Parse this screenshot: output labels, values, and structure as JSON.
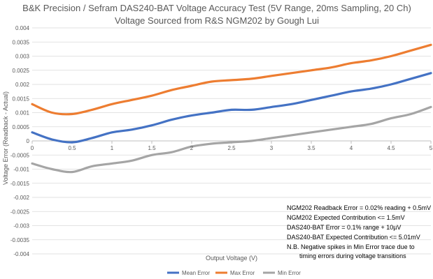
{
  "chart_data": {
    "type": "line",
    "title_lines": [
      "B&K Precision / Sefram DAS240-BAT Voltage Accuracy Test (5V Range, 20ms Sampling, 20 Ch)",
      "Voltage Sourced from R&S NGM202 by Gough Lui"
    ],
    "xlabel": "Output Voltage (V)",
    "ylabel": "Voltage Error (Readback - Actual)",
    "xlim": [
      0,
      5
    ],
    "ylim": [
      -0.004,
      0.004
    ],
    "x_ticks": [
      0,
      0.5,
      1,
      1.5,
      2,
      2.5,
      3,
      3.5,
      4,
      4.5,
      5
    ],
    "x_tick_labels": [
      "0",
      "0.5",
      "1",
      "1.5",
      "2",
      "2.5",
      "3",
      "3.5",
      "4",
      "4.5",
      "5"
    ],
    "y_ticks": [
      -0.004,
      -0.0035,
      -0.003,
      -0.0025,
      -0.002,
      -0.0015,
      -0.001,
      -0.0005,
      0,
      0.0005,
      0.001,
      0.0015,
      0.002,
      0.0025,
      0.003,
      0.0035,
      0.004
    ],
    "y_tick_labels": [
      "-0.004",
      "-0.0035",
      "-0.003",
      "-0.0025",
      "-0.002",
      "-0.0015",
      "-0.001",
      "-0.0005",
      "0",
      "0.0005",
      "0.001",
      "0.0015",
      "0.002",
      "0.0025",
      "0.003",
      "0.0035",
      "0.004"
    ],
    "grid": true,
    "legend_position": "bottom",
    "x": [
      0,
      0.25,
      0.5,
      0.75,
      1,
      1.25,
      1.5,
      1.75,
      2,
      2.25,
      2.5,
      2.75,
      3,
      3.25,
      3.5,
      3.75,
      4,
      4.25,
      4.5,
      4.75,
      5
    ],
    "series": [
      {
        "name": "Mean Error",
        "color": "#4472C4",
        "values": [
          0.0003,
          5e-05,
          -5e-05,
          0.0001,
          0.0003,
          0.0004,
          0.00055,
          0.00075,
          0.0009,
          0.001,
          0.0011,
          0.0011,
          0.0012,
          0.0013,
          0.00145,
          0.0016,
          0.00175,
          0.00185,
          0.002,
          0.0022,
          0.0024
        ]
      },
      {
        "name": "Max Error",
        "color": "#ED7D31",
        "values": [
          0.0013,
          0.001,
          0.00095,
          0.0011,
          0.0013,
          0.00145,
          0.0016,
          0.0018,
          0.00195,
          0.0021,
          0.00215,
          0.0022,
          0.0023,
          0.0024,
          0.0025,
          0.0026,
          0.00275,
          0.00285,
          0.003,
          0.0032,
          0.0034
        ]
      },
      {
        "name": "Min Error",
        "color": "#A5A5A5",
        "values": [
          -0.0008,
          -0.001,
          -0.0011,
          -0.0009,
          -0.0008,
          -0.0007,
          -0.0005,
          -0.0004,
          -0.0002,
          -0.0001,
          -5e-05,
          0,
          0.0001,
          0.0002,
          0.0003,
          0.0004,
          0.0005,
          0.0006,
          0.0008,
          0.00095,
          0.0012
        ]
      }
    ],
    "annotation_lines": [
      "NGM202 Readback Error = 0.02% reading + 0.5mV",
      "NGM202 Expected Contribution <= 1.5mV",
      "DAS240-BAT Error = 0.1% range + 10µV",
      "DAS240-BAT Expected Contribution <= 5.01mV",
      "N.B. Negative spikes in Min Error trace due to",
      "timing errors during voltage transitions"
    ]
  }
}
